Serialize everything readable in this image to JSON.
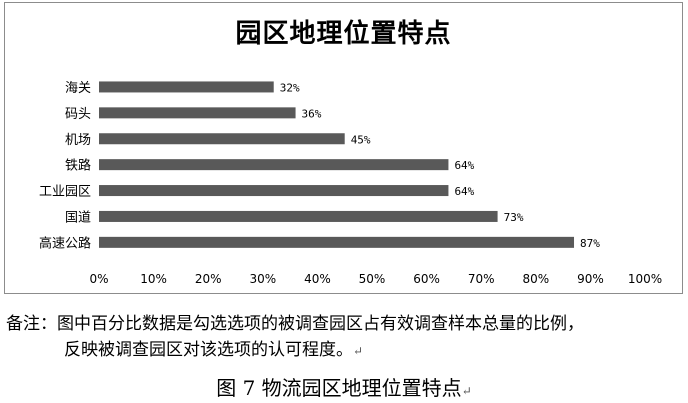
{
  "chart_data": {
    "type": "bar",
    "orientation": "horizontal",
    "title": "园区地理位置特点",
    "categories": [
      "海关",
      "码头",
      "机场",
      "铁路",
      "工业园区",
      "国道",
      "高速公路"
    ],
    "values": [
      32,
      36,
      45,
      64,
      64,
      73,
      87
    ],
    "value_labels": [
      "32%",
      "36%",
      "45%",
      "64%",
      "64%",
      "73%",
      "87%"
    ],
    "xticks": [
      "0%",
      "10%",
      "20%",
      "30%",
      "40%",
      "50%",
      "60%",
      "70%",
      "80%",
      "90%",
      "100%"
    ],
    "xlim": [
      0,
      100
    ],
    "grid": false,
    "legend": "none",
    "bar_color": "#595959"
  },
  "note": {
    "line1": "备注：图中百分比数据是勾选选项的被调查园区占有效调查样本总量的比例，",
    "line2": "反映被调查园区对该选项的认可程度。"
  },
  "caption": "图 7  物流园区地理位置特点"
}
